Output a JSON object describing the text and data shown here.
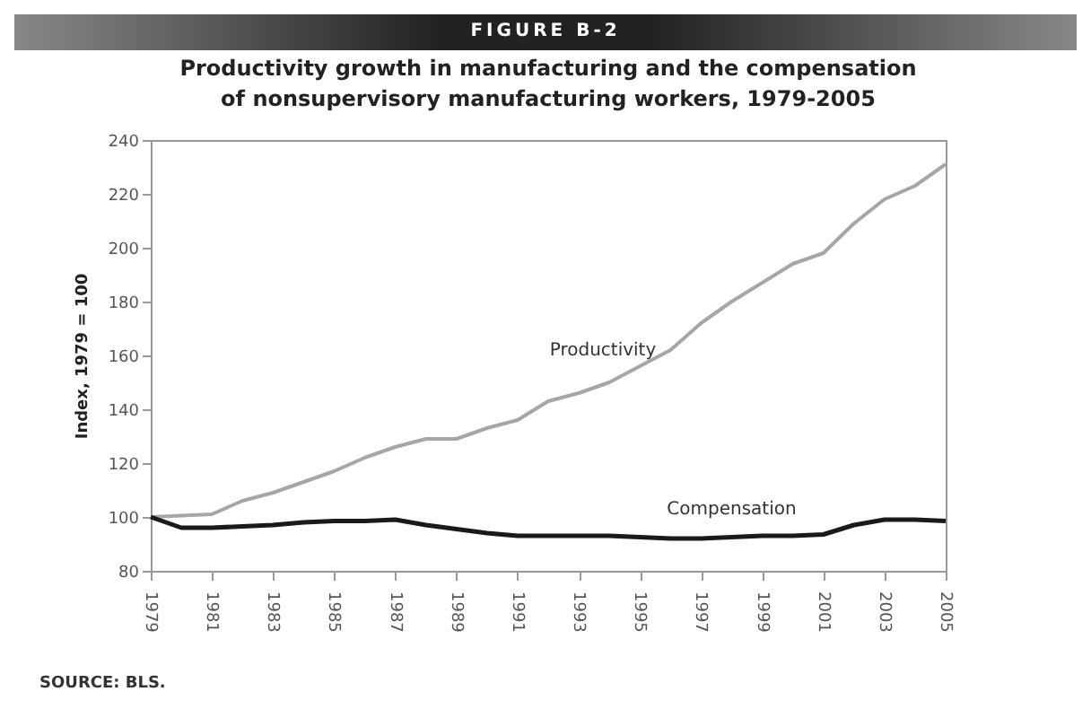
{
  "chart_data": {
    "type": "line",
    "subtitle": "FIGURE B-2",
    "title": "Productivity growth in manufacturing and the compensation of nonsupervisory manufacturing workers, 1979-2005",
    "ylabel": "Index, 1979 = 100",
    "x": [
      1979,
      1980,
      1981,
      1982,
      1983,
      1984,
      1985,
      1986,
      1987,
      1988,
      1989,
      1990,
      1991,
      1992,
      1993,
      1994,
      1995,
      1996,
      1997,
      1998,
      1999,
      2000,
      2001,
      2002,
      2003,
      2004,
      2005
    ],
    "series": [
      {
        "name": "Productivity",
        "color": "#a6a6a6",
        "values": [
          100,
          100.5,
          101,
          106,
          109,
          113,
          117,
          122,
          126,
          129,
          129,
          133,
          136,
          143,
          146,
          150,
          156,
          162,
          172,
          180,
          187,
          194,
          198,
          209,
          218,
          223,
          231
        ]
      },
      {
        "name": "Compensation",
        "color": "#1a1a1a",
        "values": [
          100,
          96,
          96,
          96.5,
          97,
          98,
          98.5,
          98.5,
          99,
          97,
          95.5,
          94,
          93,
          93,
          93,
          93,
          92.5,
          92,
          92,
          92.5,
          93,
          93,
          93.5,
          97,
          99,
          99,
          98.5
        ]
      }
    ],
    "xlim": [
      1979,
      2005
    ],
    "xticks": [
      1979,
      1981,
      1983,
      1985,
      1987,
      1989,
      1991,
      1993,
      1995,
      1997,
      1999,
      2001,
      2003,
      2005
    ],
    "ylim": [
      80,
      240
    ],
    "yticks": [
      80,
      100,
      120,
      140,
      160,
      180,
      200,
      220,
      240
    ],
    "grid": false,
    "annotations": [
      "SOURCE: BLS."
    ]
  }
}
